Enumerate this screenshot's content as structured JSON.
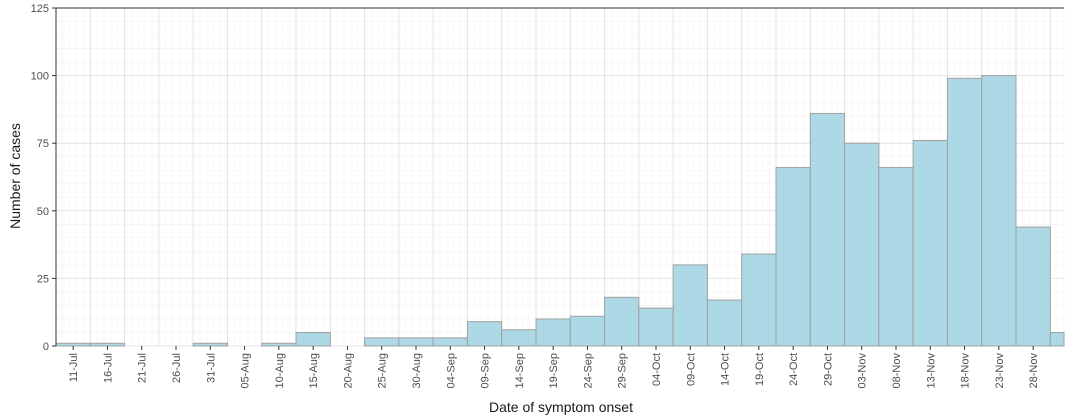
{
  "chart_data": {
    "type": "bar",
    "xlabel": "Date of symptom onset",
    "ylabel": "Number of cases",
    "ylim": [
      0,
      125
    ],
    "yticks": [
      0,
      25,
      50,
      75,
      100,
      125
    ],
    "xlim": [
      "2014-07-06",
      "2014-11-30"
    ],
    "grid": true,
    "x_tick_labels": [
      "11-Jul",
      "16-Jul",
      "21-Jul",
      "26-Jul",
      "31-Jul",
      "05-Aug",
      "10-Aug",
      "15-Aug",
      "20-Aug",
      "25-Aug",
      "30-Aug",
      "04-Sep",
      "09-Sep",
      "14-Sep",
      "19-Sep",
      "24-Sep",
      "29-Sep",
      "04-Oct",
      "09-Oct",
      "14-Oct",
      "19-Oct",
      "24-Oct",
      "29-Oct",
      "03-Nov",
      "08-Nov",
      "13-Nov",
      "18-Nov",
      "23-Nov",
      "28-Nov"
    ],
    "series": [
      {
        "bins": [
          {
            "start": "2014-07-06",
            "end": "2014-07-11",
            "value": 1
          },
          {
            "start": "2014-07-11",
            "end": "2014-07-16",
            "value": 1
          },
          {
            "start": "2014-07-16",
            "end": "2014-07-21",
            "value": 0
          },
          {
            "start": "2014-07-21",
            "end": "2014-07-26",
            "value": 0
          },
          {
            "start": "2014-07-26",
            "end": "2014-07-31",
            "value": 1
          },
          {
            "start": "2014-07-31",
            "end": "2014-08-05",
            "value": 0
          },
          {
            "start": "2014-08-05",
            "end": "2014-08-10",
            "value": 1
          },
          {
            "start": "2014-08-10",
            "end": "2014-08-15",
            "value": 5
          },
          {
            "start": "2014-08-15",
            "end": "2014-08-20",
            "value": 0
          },
          {
            "start": "2014-08-20",
            "end": "2014-08-25",
            "value": 3
          },
          {
            "start": "2014-08-25",
            "end": "2014-08-30",
            "value": 3
          },
          {
            "start": "2014-08-30",
            "end": "2014-09-04",
            "value": 3
          },
          {
            "start": "2014-09-04",
            "end": "2014-09-09",
            "value": 9
          },
          {
            "start": "2014-09-09",
            "end": "2014-09-14",
            "value": 6
          },
          {
            "start": "2014-09-14",
            "end": "2014-09-19",
            "value": 10
          },
          {
            "start": "2014-09-19",
            "end": "2014-09-24",
            "value": 11
          },
          {
            "start": "2014-09-24",
            "end": "2014-09-29",
            "value": 18
          },
          {
            "start": "2014-09-29",
            "end": "2014-10-04",
            "value": 14
          },
          {
            "start": "2014-10-04",
            "end": "2014-10-09",
            "value": 30
          },
          {
            "start": "2014-10-09",
            "end": "2014-10-14",
            "value": 17
          },
          {
            "start": "2014-10-14",
            "end": "2014-10-19",
            "value": 34
          },
          {
            "start": "2014-10-19",
            "end": "2014-10-24",
            "value": 66
          },
          {
            "start": "2014-10-24",
            "end": "2014-10-29",
            "value": 86
          },
          {
            "start": "2014-10-29",
            "end": "2014-11-03",
            "value": 75
          },
          {
            "start": "2014-11-03",
            "end": "2014-11-08",
            "value": 66
          },
          {
            "start": "2014-11-08",
            "end": "2014-11-13",
            "value": 76
          },
          {
            "start": "2014-11-13",
            "end": "2014-11-18",
            "value": 99
          },
          {
            "start": "2014-11-18",
            "end": "2014-11-23",
            "value": 100
          },
          {
            "start": "2014-11-23",
            "end": "2014-11-28",
            "value": 44
          },
          {
            "start": "2014-11-28",
            "end": "2014-11-30",
            "value": 5
          }
        ]
      }
    ],
    "colors": {
      "bar_fill": "#add8e6",
      "bar_stroke": "#a0a0a0"
    }
  }
}
